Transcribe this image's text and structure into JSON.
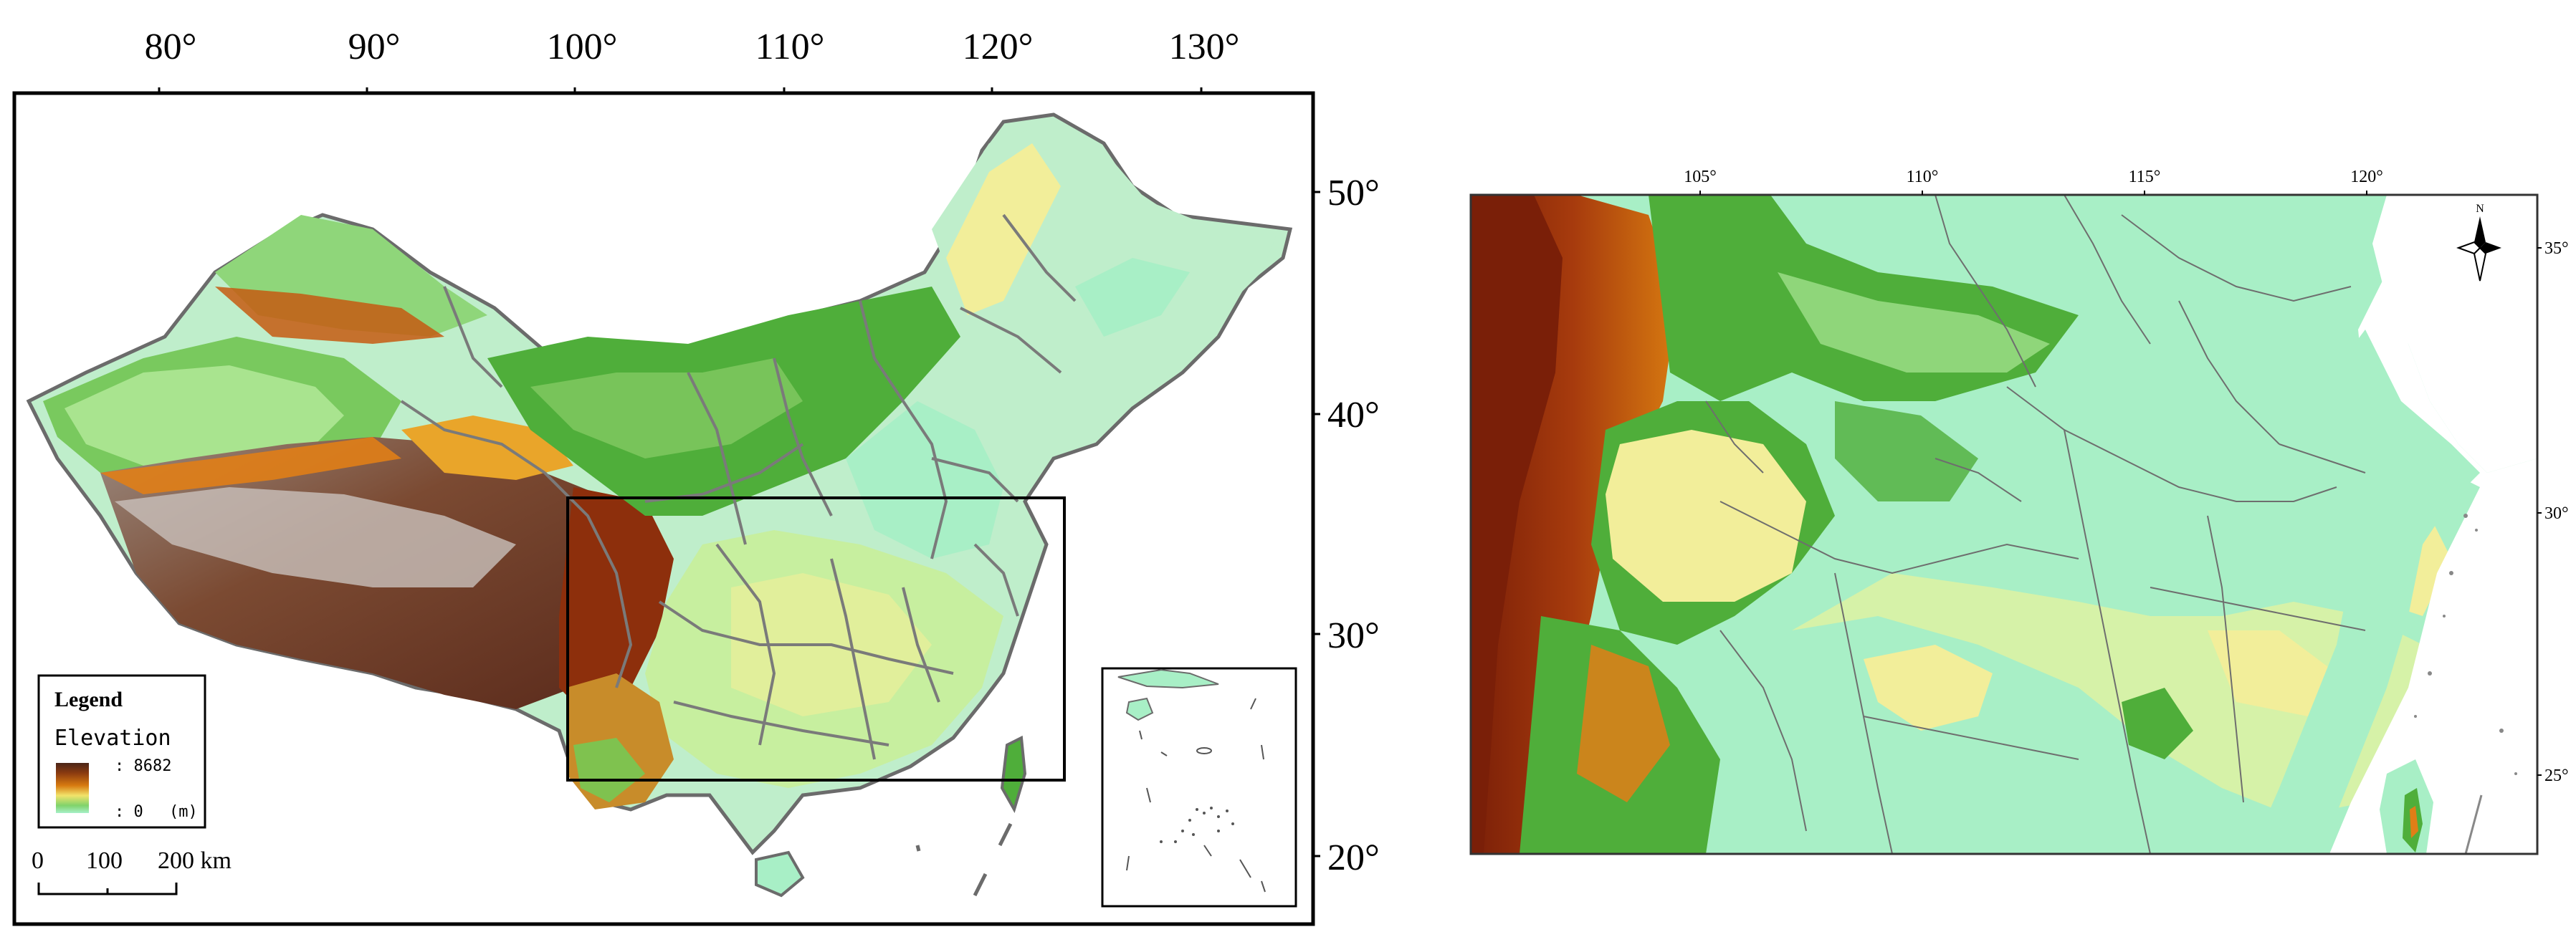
{
  "left_map": {
    "top_ticks": [
      "80°",
      "90°",
      "100°",
      "110°",
      "120°",
      "130°"
    ],
    "right_ticks": [
      "50°",
      "40°",
      "30°",
      "20°"
    ]
  },
  "legend": {
    "title": "Legend",
    "subtitle": "Elevation",
    "max_label": ": 8682",
    "min_label": ": 0",
    "unit": "(m)",
    "ramp_colors": [
      "#4a2518",
      "#8a3a10",
      "#d77a10",
      "#f2e36b",
      "#7fd36b",
      "#a7f0c8"
    ]
  },
  "scale_bar": {
    "labels": [
      "0",
      "100",
      "200 km"
    ]
  },
  "right_map": {
    "top_ticks": [
      "105°",
      "110°",
      "115°",
      "120°"
    ],
    "right_ticks": [
      "35°",
      "30°",
      "25°"
    ],
    "north_label": "N"
  },
  "colors": {
    "low": "#a8efc6",
    "plain": "#bfeecb",
    "green": "#4fae3a",
    "yellow": "#f2ee9a",
    "orange": "#e07e17",
    "brown": "#8d2f0c",
    "darkbrown": "#5a2a1b",
    "grey": "#c9c1bb",
    "border": "#6b6b6b"
  }
}
